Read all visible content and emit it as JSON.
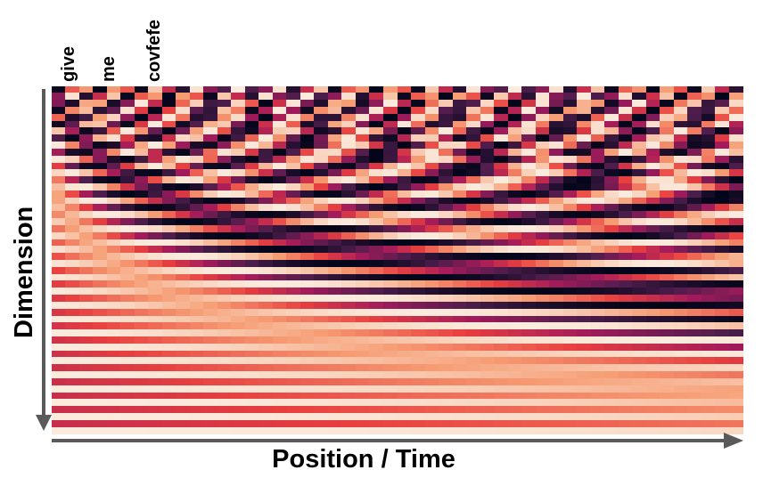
{
  "tokens": [
    "give",
    "me",
    "covfefe"
  ],
  "axis_x_label": "Position / Time",
  "axis_y_label": "Dimension",
  "colors": {
    "axis_arrow": "#5a5a5a",
    "colormap": [
      "#03051a",
      "#4c1d4b",
      "#a11a5b",
      "#e83f3f",
      "#f69c73",
      "#faebdd"
    ]
  },
  "encoding": {
    "positions": 50,
    "dimensions": 50
  }
}
